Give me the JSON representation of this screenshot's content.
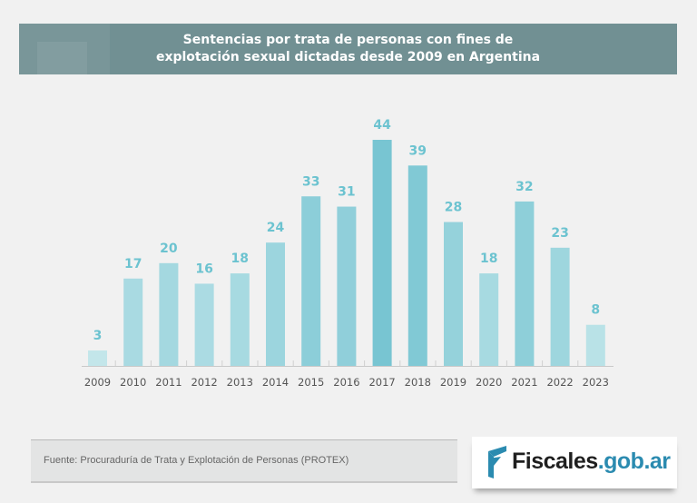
{
  "chart_data": {
    "type": "bar",
    "title": "Sentencias por trata de personas con fines de explotación sexual dictadas desde 2009 en Argentina",
    "title_lines": [
      "Sentencias por trata de personas con fines de",
      "explotación sexual dictadas desde 2009 en Argentina"
    ],
    "categories": [
      "2009",
      "2010",
      "2011",
      "2012",
      "2013",
      "2014",
      "2015",
      "2016",
      "2017",
      "2018",
      "2019",
      "2020",
      "2021",
      "2022",
      "2023"
    ],
    "values": [
      3,
      17,
      20,
      16,
      18,
      24,
      33,
      31,
      44,
      39,
      28,
      18,
      32,
      23,
      8
    ],
    "xlabel": "",
    "ylabel": "",
    "ylim": [
      0,
      44
    ],
    "grid": false,
    "data_labels": true,
    "colors": {
      "low": "#c8e8ec",
      "high": "#78c5d2",
      "label": "#6cc3d0",
      "tick": "#555555"
    }
  },
  "footer": {
    "source": "Fuente: Procuraduría de Trata y Explotación de Personas (PROTEX)",
    "logo_text_main": "Fiscales",
    "logo_text_domain": ".gob.ar"
  }
}
